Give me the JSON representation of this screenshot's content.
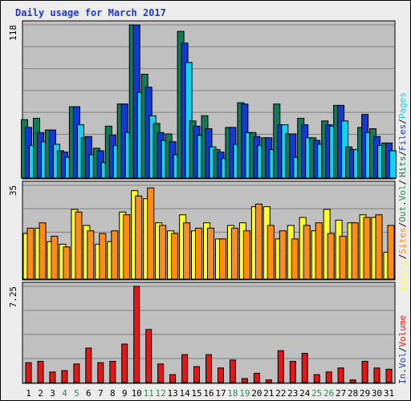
{
  "title": "Daily usage for March 2017",
  "colors": {
    "hits": "#127a5a",
    "files": "#1339d3",
    "pages": "#14d2ee",
    "visits": "#ffff26",
    "sites": "#ff8c18",
    "volume": "#e41616",
    "weekday_label": "#000000",
    "weekend_label": "#2c8a5c",
    "panel_bg": "#c0c0c0"
  },
  "labels": {
    "top_max": "118",
    "mid_max": "35",
    "bot_max": "7.25",
    "right_top": [
      "Hits",
      "/",
      "Files",
      "/",
      "Pages"
    ],
    "right_mid": [
      "Visits",
      "/",
      "Sites",
      "/",
      "Out",
      ".",
      "Vol",
      "/"
    ],
    "right_bot": [
      "In",
      ".",
      "Vol",
      "/",
      "Volume"
    ]
  },
  "chart_data": {
    "type": "bar",
    "title": "Daily usage for March 2017",
    "categories": [
      "1",
      "2",
      "3",
      "4",
      "5",
      "6",
      "7",
      "8",
      "9",
      "10",
      "11",
      "12",
      "13",
      "14",
      "15",
      "16",
      "17",
      "18",
      "19",
      "20",
      "21",
      "22",
      "23",
      "24",
      "25",
      "26",
      "27",
      "28",
      "29",
      "30",
      "31"
    ],
    "weekend_days": [
      "4",
      "5",
      "11",
      "12",
      "18",
      "19",
      "25",
      "26"
    ],
    "panels": [
      {
        "name": "top",
        "ylim": [
          0,
          118
        ],
        "series": [
          {
            "name": "Hits",
            "values": [
              45,
              46,
              37,
              21,
              55,
              31,
              23,
              40,
              57,
              118,
              80,
              42,
              34,
              113,
              44,
              48,
              22,
              39,
              58,
              35,
              31,
              57,
              34,
              46,
              31,
              44,
              56,
              24,
              39,
              38,
              27
            ]
          },
          {
            "name": "Files",
            "values": [
              39,
              35,
              37,
              20,
              55,
              32,
              21,
              33,
              57,
              118,
              70,
              35,
              28,
              104,
              40,
              38,
              20,
              39,
              57,
              32,
              31,
              41,
              34,
              41,
              29,
              41,
              56,
              22,
              49,
              32,
              27
            ]
          },
          {
            "name": "Pages",
            "values": [
              25,
              28,
              26,
              16,
              41,
              18,
              12,
              25,
              35,
              66,
              48,
              29,
              18,
              89,
              33,
              24,
              15,
              26,
              35,
              25,
              22,
              41,
              16,
              31,
              26,
              40,
              44,
              22,
              35,
              25,
              21
            ]
          }
        ]
      },
      {
        "name": "middle",
        "ylim": [
          0,
          35
        ],
        "series": [
          {
            "name": "Visits",
            "values": [
              17,
              19,
              14,
              13,
              26,
              20,
              13,
              14,
              25,
              33,
              30,
              21,
              18,
              24,
              18,
              21,
              15,
              20,
              21,
              27,
              27,
              15,
              20,
              23,
              18,
              26,
              22,
              21,
              24,
              23,
              10
            ]
          },
          {
            "name": "Sites",
            "values": [
              19,
              21,
              16,
              12,
              25,
              18,
              17,
              18,
              24,
              31,
              34,
              20,
              17,
              21,
              19,
              19,
              15,
              19,
              18,
              28,
              20,
              18,
              15,
              20,
              21,
              17,
              16,
              21,
              23,
              24,
              20
            ]
          }
        ]
      },
      {
        "name": "bottom",
        "ylim": [
          0,
          7.25
        ],
        "series": [
          {
            "name": "Volume",
            "values": [
              1.5,
              1.6,
              0.8,
              0.9,
              1.4,
              2.6,
              1.5,
              1.6,
              2.9,
              7.25,
              4.0,
              1.4,
              0.6,
              2.1,
              1.2,
              2.1,
              1.1,
              1.7,
              0.3,
              0.7,
              0.2,
              2.4,
              1.6,
              2.2,
              0.6,
              0.8,
              1.1,
              0.2,
              1.6,
              1.1,
              1.0
            ]
          }
        ]
      }
    ]
  }
}
